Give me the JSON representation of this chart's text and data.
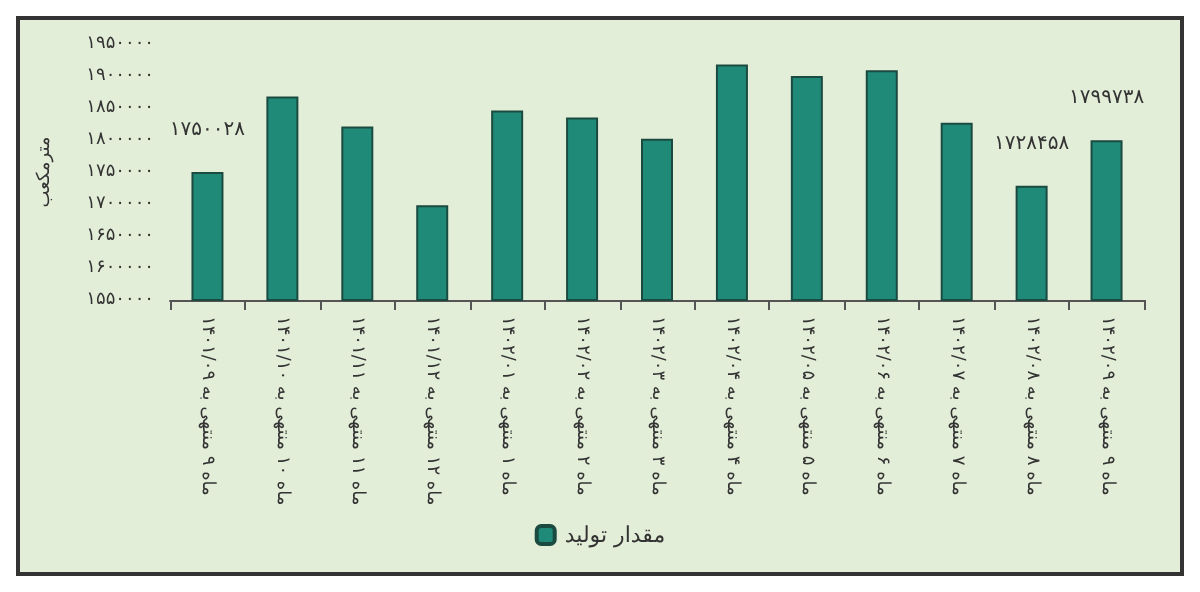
{
  "chart_data": {
    "type": "bar",
    "ylabel": "مترمکعب",
    "categories": [
      "ماه ۹ منتهی به ۱۴۰۱/۰۹",
      "ماه ۱۰ منتهی به ۱۴۰۱/۱۰",
      "ماه ۱۱ منتهی به ۱۴۰۱/۱۱",
      "ماه ۱۲ منتهی به ۱۴۰۱/۱۲",
      "ماه ۱ منتهی به ۱۴۰۲/۰۱",
      "ماه ۲ منتهی به ۱۴۰۲/۰۲",
      "ماه ۳ منتهی به ۱۴۰۲/۰۳",
      "ماه ۴ منتهی به ۱۴۰۲/۰۴",
      "ماه ۵ منتهی به ۱۴۰۲/۰۵",
      "ماه ۶ منتهی به ۱۴۰۲/۰۶",
      "ماه ۷ منتهی به ۱۴۰۲/۰۷",
      "ماه ۸ منتهی به ۱۴۰۲/۰۸",
      "ماه ۹ منتهی به ۱۴۰۲/۰۹"
    ],
    "series": [
      {
        "name": "مقدار تولید",
        "color": "#1f8a78",
        "values": [
          1750028,
          1868000,
          1821000,
          1698000,
          1846000,
          1835000,
          1802000,
          1918000,
          1900000,
          1909000,
          1827000,
          1728458,
          1799738
        ],
        "value_labels": [
          "۱۷۵۰۰۲۸",
          null,
          null,
          null,
          null,
          null,
          null,
          null,
          null,
          null,
          null,
          "۱۷۲۸۴۵۸",
          "۱۷۹۹۷۳۸"
        ]
      }
    ],
    "ylim": [
      1550000,
      1950000
    ],
    "yticks": [
      {
        "value": 1550000,
        "label": "۱۵۵۰۰۰۰"
      },
      {
        "value": 1600000,
        "label": "۱۶۰۰۰۰۰"
      },
      {
        "value": 1650000,
        "label": "۱۶۵۰۰۰۰"
      },
      {
        "value": 1700000,
        "label": "۱۷۰۰۰۰۰"
      },
      {
        "value": 1750000,
        "label": "۱۷۵۰۰۰۰"
      },
      {
        "value": 1800000,
        "label": "۱۸۰۰۰۰۰"
      },
      {
        "value": 1850000,
        "label": "۱۸۵۰۰۰۰"
      },
      {
        "value": 1900000,
        "label": "۱۹۰۰۰۰۰"
      },
      {
        "value": 1950000,
        "label": "۱۹۵۰۰۰۰"
      }
    ],
    "grid": false,
    "legend": "bottom"
  }
}
